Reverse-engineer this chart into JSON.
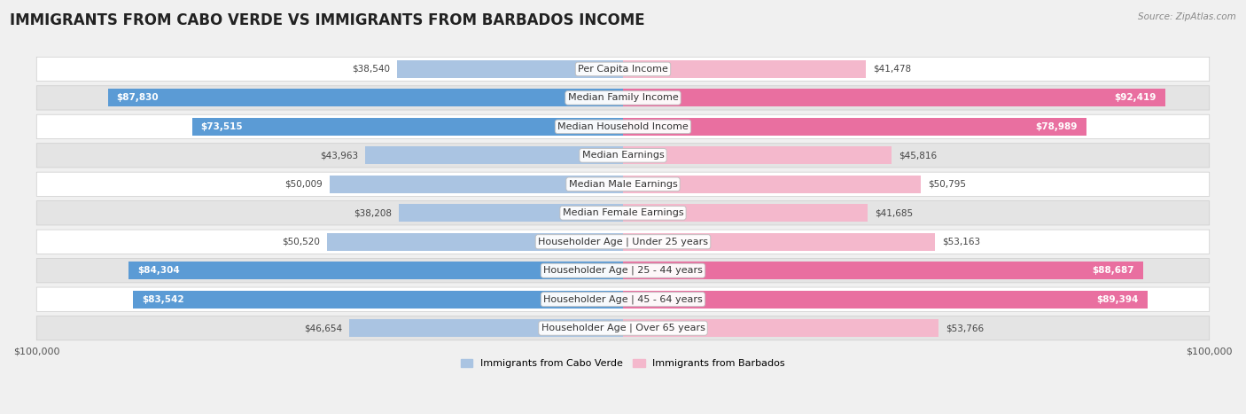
{
  "title": "IMMIGRANTS FROM CABO VERDE VS IMMIGRANTS FROM BARBADOS INCOME",
  "source": "Source: ZipAtlas.com",
  "categories": [
    "Per Capita Income",
    "Median Family Income",
    "Median Household Income",
    "Median Earnings",
    "Median Male Earnings",
    "Median Female Earnings",
    "Householder Age | Under 25 years",
    "Householder Age | 25 - 44 years",
    "Householder Age | 45 - 64 years",
    "Householder Age | Over 65 years"
  ],
  "cabo_verde": [
    38540,
    87830,
    73515,
    43963,
    50009,
    38208,
    50520,
    84304,
    83542,
    46654
  ],
  "barbados": [
    41478,
    92419,
    78989,
    45816,
    50795,
    41685,
    53163,
    88687,
    89394,
    53766
  ],
  "max_value": 100000,
  "cabo_light": "#aac4e2",
  "cabo_dark": "#5b9bd5",
  "barb_light": "#f4b8cc",
  "barb_dark": "#e96fa0",
  "cabo_verde_label": "Immigrants from Cabo Verde",
  "barbados_label": "Immigrants from Barbados",
  "bar_height": 0.62,
  "bg_color": "#f0f0f0",
  "row_light": "#ffffff",
  "row_dark": "#e4e4e4",
  "title_fontsize": 12,
  "label_fontsize": 8,
  "tick_fontsize": 8,
  "value_fontsize": 7.5,
  "threshold": 60000
}
